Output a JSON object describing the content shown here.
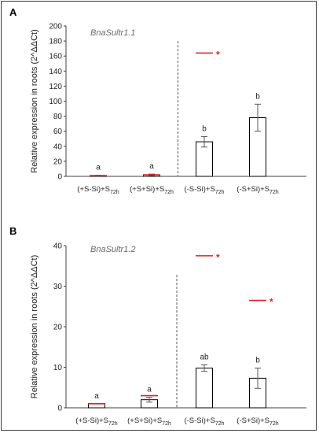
{
  "chart_data": [
    {
      "type": "bar",
      "panel_label": "A",
      "gene": "BnaSultr1.1",
      "ylabel": "Relative expression in roots (2^ΔΔCt)",
      "ylim": [
        0,
        200
      ],
      "yticks": [
        0,
        20,
        40,
        60,
        80,
        100,
        120,
        140,
        160,
        180,
        200
      ],
      "categories": [
        "(+S-Si)+S72h",
        "(+S+Si)+S72h",
        "(-S-Si)+S72h",
        "(-S+Si)+S72h"
      ],
      "category_parts": [
        [
          "(+S-Si)+S",
          "72h"
        ],
        [
          "(+S+Si)+S",
          "72h"
        ],
        [
          "(-S-Si)+S",
          "72h"
        ],
        [
          "(-S+Si)+S",
          "72h"
        ]
      ],
      "values": [
        1,
        2,
        46,
        78
      ],
      "errors": [
        0.5,
        1,
        7,
        18
      ],
      "letters": [
        "a",
        "a",
        "b",
        "b"
      ],
      "red_markers": [
        {
          "category_index": 0,
          "value": 1,
          "star": ""
        },
        {
          "category_index": 1,
          "value": 2,
          "star": ""
        },
        {
          "category_index": 2,
          "value": 164,
          "star": "*"
        }
      ],
      "divider_after_index": 1
    },
    {
      "type": "bar",
      "panel_label": "B",
      "gene": "BnaSultr1.2",
      "ylabel": "Relative expression in roots (2^ΔΔCt)",
      "ylim": [
        0,
        40
      ],
      "yticks": [
        0,
        10,
        20,
        30,
        40
      ],
      "categories": [
        "(+S-Si)+S72h",
        "(+S+Si)+S72h",
        "(-S-Si)+S72h",
        "(-S+Si)+S72h"
      ],
      "category_parts": [
        [
          "(+S-Si)+S",
          "72h"
        ],
        [
          "(+S+Si)+S",
          "72h"
        ],
        [
          "(-S-Si)+S",
          "72h"
        ],
        [
          "(-S+Si)+S",
          "72h"
        ]
      ],
      "values": [
        1,
        2,
        9.8,
        7.3
      ],
      "errors": [
        0,
        0.6,
        0.8,
        2.5
      ],
      "letters": [
        "a",
        "a",
        "ab",
        "b"
      ],
      "red_markers": [
        {
          "category_index": 0,
          "value": 1,
          "star": ""
        },
        {
          "category_index": 1,
          "value": 3,
          "star": ""
        },
        {
          "category_index": 2,
          "value": 37.5,
          "star": "*"
        },
        {
          "category_index": 3,
          "value": 26.5,
          "star": "*"
        }
      ],
      "divider_after_index": 1
    }
  ],
  "colors": {
    "bar_fill": "#ffffff",
    "bar_stroke": "#000000",
    "marker": "#e02020",
    "axis": "#404040",
    "divider": "#555555"
  }
}
